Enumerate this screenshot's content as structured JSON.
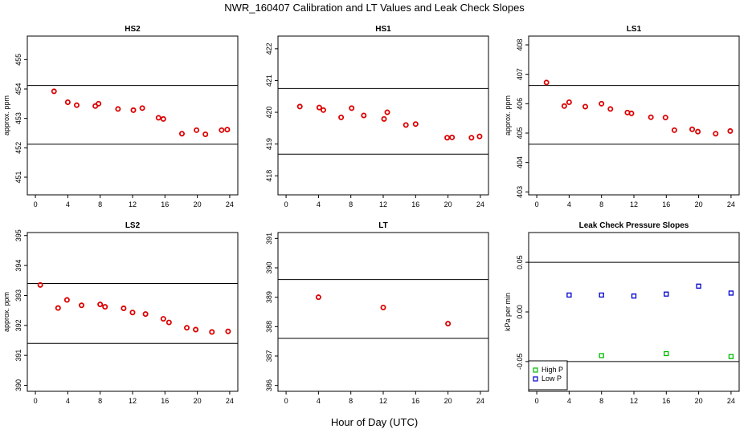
{
  "figure": {
    "title": "NWR_160407  Calibration and LT Values and Leak Check Slopes",
    "xlabel": "Hour of Day (UTC)"
  },
  "chart_data": [
    {
      "type": "scatter",
      "title": "HS2",
      "ylabel": "approx. ppm",
      "xlim": [
        -1,
        25
      ],
      "ylim": [
        450.4,
        455.8
      ],
      "xticks": [
        "0",
        "4",
        "8",
        "12",
        "16",
        "20",
        "24"
      ],
      "yticks": [
        "451",
        "452",
        "453",
        "454",
        "455"
      ],
      "hlines": [
        452.12,
        454.12
      ],
      "series": [
        {
          "color": "#dd0000",
          "points": [
            [
              2.3,
              453.92
            ],
            [
              4.0,
              453.55
            ],
            [
              5.1,
              453.45
            ],
            [
              7.4,
              453.42
            ],
            [
              7.8,
              453.5
            ],
            [
              10.2,
              453.32
            ],
            [
              12.1,
              453.28
            ],
            [
              13.2,
              453.35
            ],
            [
              15.2,
              453.02
            ],
            [
              15.8,
              452.98
            ],
            [
              18.1,
              452.48
            ],
            [
              19.9,
              452.6
            ],
            [
              21.0,
              452.46
            ],
            [
              23.0,
              452.6
            ],
            [
              23.7,
              452.62
            ]
          ]
        }
      ]
    },
    {
      "type": "scatter",
      "title": "HS1",
      "ylabel": "",
      "xlim": [
        -1,
        25
      ],
      "ylim": [
        417.4,
        422.4
      ],
      "xticks": [
        "0",
        "4",
        "8",
        "12",
        "16",
        "20",
        "24"
      ],
      "yticks": [
        "418",
        "419",
        "420",
        "421",
        "422"
      ],
      "hlines": [
        418.68,
        420.75
      ],
      "series": [
        {
          "color": "#dd0000",
          "points": [
            [
              1.7,
              420.18
            ],
            [
              4.1,
              420.15
            ],
            [
              4.6,
              420.07
            ],
            [
              6.8,
              419.84
            ],
            [
              8.1,
              420.13
            ],
            [
              9.6,
              419.9
            ],
            [
              12.1,
              419.79
            ],
            [
              12.5,
              420.0
            ],
            [
              14.8,
              419.6
            ],
            [
              16.0,
              419.63
            ],
            [
              19.9,
              419.2
            ],
            [
              20.5,
              419.21
            ],
            [
              22.9,
              419.2
            ],
            [
              23.9,
              419.24
            ]
          ]
        }
      ]
    },
    {
      "type": "scatter",
      "title": "LS1",
      "ylabel": "approx. ppm",
      "xlim": [
        -1,
        25
      ],
      "ylim": [
        402.9,
        408.3
      ],
      "xticks": [
        "0",
        "4",
        "8",
        "12",
        "16",
        "20",
        "24"
      ],
      "yticks": [
        "403",
        "404",
        "405",
        "406",
        "407",
        "408"
      ],
      "hlines": [
        404.62,
        406.62
      ],
      "series": [
        {
          "color": "#dd0000",
          "points": [
            [
              1.2,
              406.72
            ],
            [
              3.4,
              405.92
            ],
            [
              4.0,
              406.05
            ],
            [
              6.0,
              405.9
            ],
            [
              8.0,
              406.0
            ],
            [
              9.1,
              405.82
            ],
            [
              11.2,
              405.7
            ],
            [
              11.7,
              405.67
            ],
            [
              14.1,
              405.54
            ],
            [
              15.9,
              405.53
            ],
            [
              17.0,
              405.1
            ],
            [
              19.2,
              405.13
            ],
            [
              19.9,
              405.05
            ],
            [
              22.1,
              404.98
            ],
            [
              23.9,
              405.07
            ]
          ]
        }
      ]
    },
    {
      "type": "scatter",
      "title": "LS2",
      "ylabel": "approx. ppm",
      "xlim": [
        -1,
        25
      ],
      "ylim": [
        389.8,
        395.1
      ],
      "xticks": [
        "0",
        "4",
        "8",
        "12",
        "16",
        "20",
        "24"
      ],
      "yticks": [
        "390",
        "391",
        "392",
        "393",
        "394",
        "395"
      ],
      "hlines": [
        391.4,
        393.4
      ],
      "series": [
        {
          "color": "#dd0000",
          "points": [
            [
              0.6,
              393.35
            ],
            [
              2.8,
              392.58
            ],
            [
              3.9,
              392.85
            ],
            [
              5.7,
              392.67
            ],
            [
              8.0,
              392.7
            ],
            [
              8.6,
              392.62
            ],
            [
              10.9,
              392.57
            ],
            [
              12.0,
              392.43
            ],
            [
              13.6,
              392.38
            ],
            [
              15.8,
              392.22
            ],
            [
              16.5,
              392.1
            ],
            [
              18.7,
              391.92
            ],
            [
              19.8,
              391.86
            ],
            [
              21.8,
              391.78
            ],
            [
              23.8,
              391.8
            ]
          ]
        }
      ]
    },
    {
      "type": "scatter",
      "title": "LT",
      "ylabel": "",
      "xlim": [
        -1,
        25
      ],
      "ylim": [
        385.8,
        391.2
      ],
      "xticks": [
        "0",
        "4",
        "8",
        "12",
        "16",
        "20",
        "24"
      ],
      "yticks": [
        "386",
        "387",
        "388",
        "389",
        "390",
        "391"
      ],
      "hlines": [
        387.6,
        389.6
      ],
      "series": [
        {
          "color": "#dd0000",
          "points": [
            [
              4.0,
              389.0
            ],
            [
              12.0,
              388.65
            ],
            [
              20.0,
              388.1
            ]
          ]
        }
      ]
    },
    {
      "type": "scatter",
      "title": "Leak Check Pressure Slopes",
      "ylabel": "kPa per min",
      "xlim": [
        -1,
        25
      ],
      "ylim": [
        -0.08,
        0.08
      ],
      "xticks": [
        "0",
        "4",
        "8",
        "12",
        "16",
        "20",
        "24"
      ],
      "yticks": [
        "-0.05",
        "0.00",
        "0.05"
      ],
      "yticks_vals": [
        -0.05,
        0.0,
        0.05
      ],
      "hlines": [
        0.05,
        -0.05
      ],
      "legend": {
        "position": "bottom-left",
        "entries": [
          "High P",
          "Low P"
        ]
      },
      "series": [
        {
          "name": "High P",
          "color": "#00bb00",
          "marker": "square",
          "points": [
            [
              8.0,
              -0.044
            ],
            [
              16.0,
              -0.042
            ],
            [
              24.0,
              -0.045
            ]
          ]
        },
        {
          "name": "Low P",
          "color": "#0000cc",
          "marker": "square",
          "points": [
            [
              4.0,
              0.017
            ],
            [
              8.0,
              0.017
            ],
            [
              12.0,
              0.016
            ],
            [
              16.0,
              0.018
            ],
            [
              20.0,
              0.026
            ],
            [
              24.0,
              0.019
            ]
          ]
        }
      ]
    }
  ]
}
